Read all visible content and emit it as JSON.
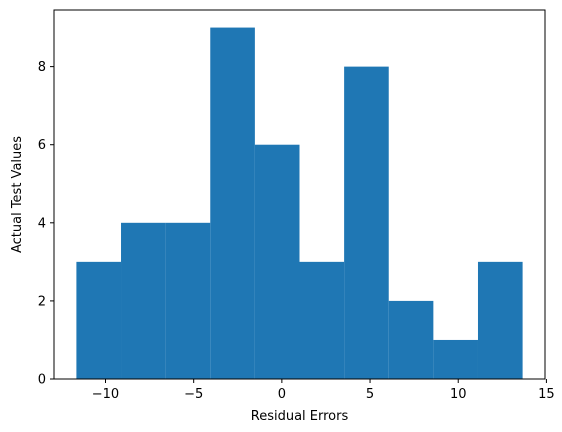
{
  "chart_data": {
    "type": "bar",
    "bins": [
      {
        "x0": -11.65,
        "x1": -9.12,
        "count": 3
      },
      {
        "x0": -9.12,
        "x1": -6.59,
        "count": 4
      },
      {
        "x0": -6.59,
        "x1": -4.06,
        "count": 4
      },
      {
        "x0": -4.06,
        "x1": -1.53,
        "count": 9
      },
      {
        "x0": -1.53,
        "x1": 1.0,
        "count": 6
      },
      {
        "x0": 1.0,
        "x1": 3.53,
        "count": 3
      },
      {
        "x0": 3.53,
        "x1": 6.06,
        "count": 8
      },
      {
        "x0": 6.06,
        "x1": 8.59,
        "count": 2
      },
      {
        "x0": 8.59,
        "x1": 11.12,
        "count": 1
      },
      {
        "x0": 11.12,
        "x1": 13.65,
        "count": 3
      }
    ],
    "title": "",
    "xlabel": "Residual Errors",
    "ylabel": "Actual Test Values",
    "xlim": [
      -12.92,
      14.92
    ],
    "ylim": [
      0,
      9.45
    ],
    "xticks": [
      -10,
      -5,
      0,
      5,
      10,
      15
    ],
    "xtick_labels": [
      "−10",
      "−5",
      "0",
      "5",
      "10",
      "15"
    ],
    "yticks": [
      0,
      2,
      4,
      6,
      8
    ],
    "ytick_labels": [
      "0",
      "2",
      "4",
      "6",
      "8"
    ],
    "grid": false,
    "bar_color": "#1f77b4"
  }
}
